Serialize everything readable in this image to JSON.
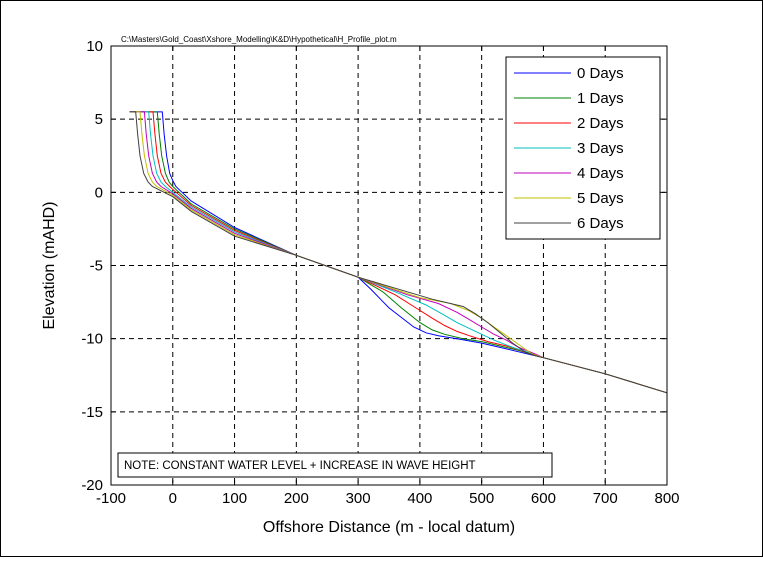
{
  "chart_data": {
    "type": "line",
    "path_label": "C:\\Masters\\Gold_Coast\\Xshore_Modelling\\K&D\\Hypothetical\\H_Profile_plot.m",
    "title": "",
    "xlabel": "Offshore Distance (m - local datum)",
    "ylabel": "Elevation (mAHD)",
    "xlim": [
      -100,
      800
    ],
    "ylim": [
      -20,
      10
    ],
    "xticks": [
      -100,
      0,
      100,
      200,
      300,
      400,
      500,
      600,
      700,
      800
    ],
    "yticks": [
      -20,
      -15,
      -10,
      -5,
      0,
      5,
      10
    ],
    "grid": true,
    "legend_position": "top-right",
    "note": "NOTE: CONSTANT WATER LEVEL + INCREASE IN WAVE HEIGHT",
    "series": [
      {
        "name": "0 Days",
        "color": "#0000ff",
        "x": [
          -70,
          -17,
          -14,
          -10,
          -5,
          0,
          5,
          30,
          100,
          200,
          300,
          320,
          350,
          390,
          410,
          430,
          460,
          500,
          540,
          580,
          600,
          700,
          800
        ],
        "y": [
          5.5,
          5.5,
          4.0,
          2.5,
          1.3,
          0.8,
          0.4,
          -0.6,
          -2.4,
          -4.3,
          -5.8,
          -6.6,
          -7.9,
          -9.2,
          -9.6,
          -9.8,
          -10.0,
          -10.3,
          -10.7,
          -11.1,
          -11.3,
          -12.4,
          -13.7
        ]
      },
      {
        "name": "1 Days",
        "color": "#008000",
        "x": [
          -70,
          -25,
          -22,
          -18,
          -12,
          -6,
          0,
          30,
          100,
          200,
          300,
          340,
          370,
          400,
          420,
          440,
          470,
          500,
          530,
          560,
          590,
          600,
          700,
          800
        ],
        "y": [
          5.5,
          5.5,
          4.0,
          2.5,
          1.3,
          0.7,
          0.4,
          -0.8,
          -2.5,
          -4.3,
          -5.8,
          -6.8,
          -7.9,
          -8.9,
          -9.4,
          -9.7,
          -10.0,
          -10.2,
          -10.5,
          -10.8,
          -11.2,
          -11.3,
          -12.4,
          -13.7
        ]
      },
      {
        "name": "2 Days",
        "color": "#ff0000",
        "x": [
          -70,
          -32,
          -29,
          -25,
          -19,
          -12,
          -5,
          0,
          30,
          100,
          200,
          300,
          360,
          390,
          420,
          440,
          460,
          480,
          510,
          540,
          570,
          590,
          600,
          700,
          800
        ],
        "y": [
          5.5,
          5.5,
          4.0,
          2.5,
          1.3,
          0.7,
          0.4,
          0.2,
          -0.9,
          -2.6,
          -4.3,
          -5.8,
          -7.0,
          -7.8,
          -8.6,
          -9.1,
          -9.5,
          -9.8,
          -10.2,
          -10.5,
          -10.9,
          -11.2,
          -11.3,
          -12.4,
          -13.7
        ]
      },
      {
        "name": "3 Days",
        "color": "#00bfbf",
        "x": [
          -70,
          -39,
          -36,
          -32,
          -26,
          -19,
          -12,
          0,
          30,
          100,
          200,
          300,
          360,
          410,
          440,
          460,
          480,
          500,
          520,
          550,
          580,
          600,
          700,
          800
        ],
        "y": [
          5.5,
          5.5,
          4.0,
          2.5,
          1.3,
          0.7,
          0.4,
          0.0,
          -1.0,
          -2.7,
          -4.3,
          -5.8,
          -6.8,
          -7.7,
          -8.4,
          -8.9,
          -9.3,
          -9.7,
          -10.1,
          -10.6,
          -11.0,
          -11.3,
          -12.4,
          -13.7
        ]
      },
      {
        "name": "4 Days",
        "color": "#bf00bf",
        "x": [
          -70,
          -46,
          -43,
          -39,
          -33,
          -26,
          -19,
          0,
          30,
          100,
          200,
          300,
          380,
          430,
          460,
          480,
          500,
          520,
          540,
          560,
          590,
          600,
          700,
          800
        ],
        "y": [
          5.5,
          5.5,
          4.0,
          2.5,
          1.3,
          0.7,
          0.4,
          -0.1,
          -1.1,
          -2.8,
          -4.3,
          -5.8,
          -7.0,
          -7.6,
          -8.2,
          -8.7,
          -9.2,
          -9.7,
          -10.1,
          -10.6,
          -11.1,
          -11.3,
          -12.4,
          -13.7
        ]
      },
      {
        "name": "5 Days",
        "color": "#bfbf00",
        "x": [
          -70,
          -53,
          -50,
          -46,
          -40,
          -33,
          -26,
          0,
          30,
          100,
          200,
          300,
          400,
          450,
          480,
          500,
          520,
          540,
          560,
          580,
          600,
          700,
          800
        ],
        "y": [
          5.5,
          5.5,
          4.0,
          2.5,
          1.3,
          0.7,
          0.4,
          -0.2,
          -1.2,
          -2.9,
          -4.3,
          -5.8,
          -7.2,
          -7.6,
          -8.1,
          -8.6,
          -9.2,
          -9.8,
          -10.4,
          -11.0,
          -11.3,
          -12.4,
          -13.7
        ]
      },
      {
        "name": "6 Days",
        "color": "#404040",
        "x": [
          -70,
          -60,
          -57,
          -53,
          -47,
          -40,
          -33,
          0,
          30,
          100,
          200,
          300,
          420,
          470,
          490,
          510,
          530,
          550,
          570,
          590,
          600,
          700,
          800
        ],
        "y": [
          5.5,
          5.5,
          4.0,
          2.5,
          1.3,
          0.7,
          0.4,
          -0.3,
          -1.3,
          -3.0,
          -4.3,
          -5.8,
          -7.3,
          -7.8,
          -8.3,
          -8.9,
          -9.6,
          -10.3,
          -10.9,
          -11.2,
          -11.3,
          -12.4,
          -13.7
        ]
      }
    ]
  }
}
